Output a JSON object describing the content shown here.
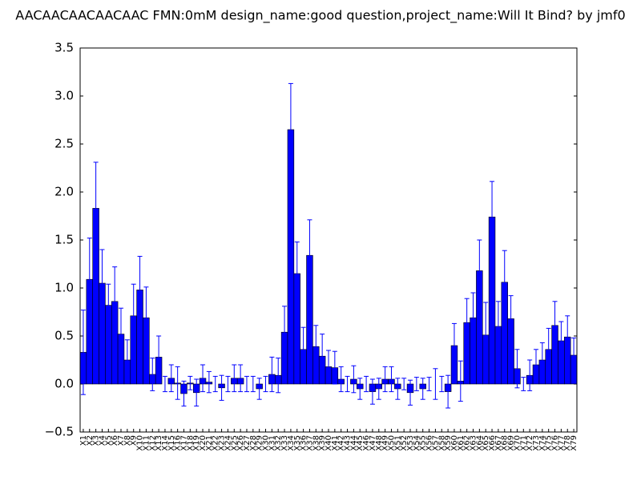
{
  "chart_data": {
    "type": "bar",
    "title": "AACAACAACAACAAC  FMN:0mM  design_name:good question,project_name:Will It Bind? by jmf0",
    "categories": [
      "X1",
      "X2",
      "X3",
      "X4",
      "X5",
      "X6",
      "X7",
      "X8",
      "X9",
      "X10",
      "X11",
      "X12",
      "X13",
      "X14",
      "X15",
      "X16",
      "X17",
      "X18",
      "X19",
      "X20",
      "X21",
      "X22",
      "X23",
      "X24",
      "X25",
      "X26",
      "X27",
      "X28",
      "X29",
      "X30",
      "X31",
      "X32",
      "X33",
      "X34",
      "X35",
      "X36",
      "X37",
      "X38",
      "X39",
      "X40",
      "X41",
      "X42",
      "X43",
      "X44",
      "X45",
      "X46",
      "X47",
      "X48",
      "X49",
      "X50",
      "X51",
      "X52",
      "X53",
      "X54",
      "X55",
      "X56",
      "X57",
      "X58",
      "X59",
      "X60",
      "X61",
      "X62",
      "X63",
      "X64",
      "X65",
      "X66",
      "X67",
      "X68",
      "X69",
      "X70",
      "X71",
      "X72",
      "X73",
      "X74",
      "X75",
      "X76",
      "X77",
      "X78",
      "X79"
    ],
    "values": [
      0.33,
      1.09,
      1.83,
      1.05,
      0.82,
      0.86,
      0.52,
      0.25,
      0.71,
      0.98,
      0.69,
      0.1,
      0.28,
      0.0,
      0.06,
      0.01,
      -0.1,
      0.01,
      -0.09,
      0.06,
      0.02,
      0.0,
      -0.04,
      0.0,
      0.06,
      0.06,
      0.0,
      0.0,
      -0.05,
      0.0,
      0.1,
      0.09,
      0.54,
      2.65,
      1.15,
      0.36,
      1.34,
      0.39,
      0.29,
      0.18,
      0.17,
      0.05,
      0.0,
      0.05,
      -0.05,
      0.0,
      -0.08,
      -0.05,
      0.05,
      0.05,
      -0.05,
      0.0,
      -0.09,
      0.0,
      -0.05,
      0.0,
      0.0,
      0.0,
      -0.08,
      0.4,
      0.03,
      0.64,
      0.69,
      1.18,
      0.51,
      1.74,
      0.6,
      1.06,
      0.68,
      0.16,
      0.0,
      0.09,
      0.2,
      0.25,
      0.36,
      0.61,
      0.45,
      0.49,
      0.3
    ],
    "errors": [
      0.44,
      0.43,
      0.48,
      0.35,
      0.22,
      0.36,
      0.27,
      0.21,
      0.33,
      0.35,
      0.32,
      0.17,
      0.22,
      0.08,
      0.14,
      0.17,
      0.13,
      0.07,
      0.14,
      0.14,
      0.11,
      0.08,
      0.13,
      0.08,
      0.14,
      0.14,
      0.08,
      0.08,
      0.11,
      0.08,
      0.18,
      0.18,
      0.27,
      0.48,
      0.33,
      0.23,
      0.37,
      0.22,
      0.23,
      0.17,
      0.17,
      0.13,
      0.08,
      0.14,
      0.11,
      0.08,
      0.13,
      0.11,
      0.13,
      0.13,
      0.11,
      0.06,
      0.13,
      0.07,
      0.11,
      0.07,
      0.16,
      0.08,
      0.17,
      0.23,
      0.21,
      0.25,
      0.26,
      0.32,
      0.34,
      0.37,
      0.26,
      0.33,
      0.24,
      0.2,
      0.07,
      0.16,
      0.16,
      0.18,
      0.22,
      0.25,
      0.2,
      0.22,
      0.18
    ],
    "color": "#0000ff",
    "error_color": "#0000ff",
    "ylim": [
      -0.5,
      3.5
    ],
    "yticks": [
      {
        "value": -0.5,
        "label": "−0.5"
      },
      {
        "value": 0,
        "label": "0.0"
      },
      {
        "value": 0.5,
        "label": "0.5"
      },
      {
        "value": 1,
        "label": "1.0"
      },
      {
        "value": 1.5,
        "label": "1.5"
      },
      {
        "value": 2,
        "label": "2.0"
      },
      {
        "value": 2.5,
        "label": "2.5"
      },
      {
        "value": 3,
        "label": "3.0"
      },
      {
        "value": 3.5,
        "label": "3.5"
      }
    ],
    "grid": false
  }
}
